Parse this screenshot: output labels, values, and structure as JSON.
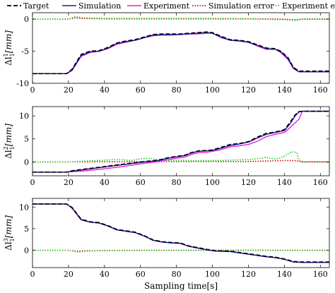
{
  "colors": {
    "target": "#000000",
    "simulation": "#1a1aa6",
    "experiment": "#e31ee3",
    "simulation_error": "#cc0000",
    "experiment_error": "#22cc22"
  },
  "chart_data": [
    {
      "type": "line",
      "ylabel": "Δl",
      "ylabel_sup": "1",
      "ylabel_sub": "1",
      "ylabel_unit": "[mm]",
      "xlim": [
        0,
        165
      ],
      "ylim": [
        -10,
        1
      ],
      "xticks": [
        0,
        20,
        40,
        60,
        80,
        100,
        120,
        140,
        160
      ],
      "xtick_labels": [
        "0",
        "20",
        "40",
        "60",
        "80",
        "100",
        "120",
        "140",
        "160"
      ],
      "yticks": [
        -10,
        -5,
        0
      ],
      "ytick_labels": [
        "-10",
        "-5",
        "0"
      ],
      "legend": [
        "Target",
        "Simulation",
        "Experiment",
        "Simulation error",
        "Experiment error"
      ],
      "series": [
        {
          "name": "Target",
          "style": "dashed",
          "x": [
            0,
            19,
            22,
            27,
            32,
            37,
            42,
            47,
            52,
            57,
            62,
            67,
            72,
            77,
            82,
            87,
            92,
            97,
            100,
            105,
            110,
            115,
            120,
            125,
            130,
            135,
            138,
            142,
            145,
            148,
            150,
            155,
            160,
            165
          ],
          "y": [
            -8.5,
            -8.5,
            -7.8,
            -5.5,
            -5.0,
            -4.9,
            -4.4,
            -3.7,
            -3.4,
            -3.2,
            -2.8,
            -2.4,
            -2.3,
            -2.3,
            -2.3,
            -2.2,
            -2.1,
            -2.0,
            -2.1,
            -2.7,
            -3.2,
            -3.3,
            -3.5,
            -4.0,
            -4.5,
            -4.6,
            -5.0,
            -6.0,
            -7.5,
            -8.1,
            -8.1,
            -8.1,
            -8.1,
            -8.1
          ]
        },
        {
          "name": "Simulation",
          "style": "solid",
          "x": [
            0,
            19,
            22,
            27,
            32,
            37,
            42,
            47,
            52,
            57,
            62,
            67,
            72,
            77,
            82,
            87,
            92,
            97,
            100,
            105,
            110,
            115,
            120,
            125,
            130,
            135,
            138,
            142,
            145,
            148,
            150,
            155,
            160,
            165
          ],
          "y": [
            -8.5,
            -8.5,
            -7.9,
            -5.7,
            -5.1,
            -5.0,
            -4.5,
            -3.8,
            -3.5,
            -3.3,
            -2.9,
            -2.5,
            -2.4,
            -2.4,
            -2.4,
            -2.3,
            -2.2,
            -2.1,
            -2.2,
            -2.8,
            -3.3,
            -3.4,
            -3.6,
            -4.1,
            -4.6,
            -4.7,
            -5.1,
            -6.1,
            -7.6,
            -8.2,
            -8.2,
            -8.2,
            -8.2,
            -8.2
          ]
        },
        {
          "name": "Experiment",
          "style": "solid",
          "x": [
            0,
            19,
            22,
            27,
            32,
            37,
            42,
            47,
            52,
            57,
            62,
            67,
            72,
            77,
            82,
            87,
            92,
            97,
            100,
            105,
            110,
            115,
            120,
            125,
            130,
            135,
            138,
            142,
            145,
            148,
            150,
            155,
            160,
            165
          ],
          "y": [
            -8.5,
            -8.5,
            -8.0,
            -5.8,
            -5.2,
            -5.0,
            -4.6,
            -3.9,
            -3.6,
            -3.3,
            -2.9,
            -2.6,
            -2.5,
            -2.5,
            -2.4,
            -2.3,
            -2.3,
            -2.2,
            -2.2,
            -2.9,
            -3.3,
            -3.4,
            -3.6,
            -4.2,
            -4.7,
            -4.7,
            -5.2,
            -6.3,
            -7.7,
            -8.2,
            -8.2,
            -8.2,
            -8.2,
            -8.2
          ]
        },
        {
          "name": "Simulation error",
          "style": "dotted",
          "x": [
            0,
            20,
            24,
            28,
            40,
            60,
            80,
            100,
            120,
            140,
            146,
            150,
            165
          ],
          "y": [
            0.0,
            0.0,
            0.2,
            0.1,
            0.05,
            0.05,
            0.05,
            0.05,
            0.05,
            0.0,
            -0.1,
            0.0,
            0.0
          ]
        },
        {
          "name": "Experiment error",
          "style": "dotted",
          "x": [
            0,
            20,
            24,
            28,
            40,
            60,
            80,
            100,
            120,
            140,
            146,
            150,
            165
          ],
          "y": [
            0.0,
            0.0,
            0.4,
            0.2,
            0.1,
            0.1,
            0.1,
            0.1,
            0.05,
            -0.1,
            -0.2,
            0.0,
            0.0
          ]
        }
      ]
    },
    {
      "type": "line",
      "ylabel": "Δl",
      "ylabel_sup": "2",
      "ylabel_sub": "1",
      "ylabel_unit": "[mm]",
      "xlim": [
        0,
        165
      ],
      "ylim": [
        -3,
        12
      ],
      "xticks": [
        0,
        20,
        40,
        60,
        80,
        100,
        120,
        140,
        160
      ],
      "xtick_labels": [
        "0",
        "20",
        "40",
        "60",
        "80",
        "100",
        "120",
        "140",
        "160"
      ],
      "yticks": [
        0,
        5,
        10
      ],
      "ytick_labels": [
        "0",
        "5",
        "10"
      ],
      "series": [
        {
          "name": "Target",
          "style": "dashed",
          "x": [
            0,
            19,
            22,
            30,
            40,
            50,
            60,
            70,
            75,
            80,
            85,
            88,
            92,
            97,
            100,
            105,
            110,
            115,
            120,
            125,
            130,
            135,
            140,
            143,
            146,
            148,
            150,
            155,
            165
          ],
          "y": [
            -2.2,
            -2.2,
            -1.9,
            -1.5,
            -1.0,
            -0.5,
            0.0,
            0.4,
            0.9,
            1.2,
            1.5,
            2.0,
            2.4,
            2.5,
            2.6,
            3.2,
            3.8,
            4.0,
            4.4,
            5.4,
            6.2,
            6.5,
            7.0,
            8.5,
            10.2,
            10.9,
            11.0,
            11.0,
            11.0
          ]
        },
        {
          "name": "Simulation",
          "style": "solid",
          "x": [
            0,
            19,
            22,
            30,
            40,
            50,
            60,
            70,
            75,
            80,
            85,
            88,
            92,
            97,
            100,
            105,
            110,
            115,
            120,
            125,
            130,
            135,
            140,
            143,
            146,
            148,
            150,
            155,
            165
          ],
          "y": [
            -2.2,
            -2.2,
            -2.0,
            -1.6,
            -1.1,
            -0.6,
            -0.1,
            0.3,
            0.8,
            1.1,
            1.4,
            1.9,
            2.3,
            2.4,
            2.5,
            3.0,
            3.6,
            3.9,
            4.3,
            5.2,
            6.0,
            6.4,
            6.8,
            8.2,
            10.0,
            10.8,
            11.0,
            11.0,
            11.0
          ]
        },
        {
          "name": "Experiment",
          "style": "solid",
          "x": [
            0,
            19,
            22,
            30,
            40,
            50,
            60,
            70,
            75,
            80,
            85,
            88,
            92,
            97,
            100,
            105,
            110,
            115,
            120,
            125,
            130,
            135,
            140,
            143,
            146,
            148,
            150,
            155,
            165
          ],
          "y": [
            -2.2,
            -2.2,
            -2.1,
            -1.9,
            -1.5,
            -1.0,
            -0.4,
            0.1,
            0.5,
            0.8,
            1.1,
            1.6,
            2.0,
            2.1,
            2.3,
            2.7,
            3.3,
            3.5,
            3.8,
            4.5,
            5.5,
            6.0,
            6.4,
            7.4,
            8.5,
            9.2,
            11.0,
            11.0,
            11.0
          ]
        },
        {
          "name": "Simulation error",
          "style": "dotted",
          "x": [
            0,
            20,
            40,
            60,
            80,
            100,
            120,
            130,
            140,
            145,
            148,
            150,
            165
          ],
          "y": [
            0.0,
            0.0,
            0.05,
            0.05,
            0.1,
            0.1,
            0.1,
            0.2,
            0.3,
            0.3,
            0.2,
            0.0,
            0.0
          ]
        },
        {
          "name": "Experiment error",
          "style": "dotted",
          "x": [
            0,
            20,
            30,
            40,
            45,
            50,
            55,
            60,
            65,
            70,
            75,
            80,
            90,
            100,
            110,
            120,
            125,
            130,
            135,
            140,
            143,
            145,
            147,
            148,
            150,
            155,
            165
          ],
          "y": [
            0.0,
            0.0,
            0.2,
            0.4,
            0.5,
            0.5,
            0.3,
            0.7,
            0.8,
            0.5,
            0.3,
            0.4,
            0.3,
            0.3,
            0.4,
            0.5,
            0.7,
            1.0,
            0.6,
            1.2,
            2.0,
            2.2,
            2.0,
            0.5,
            0.0,
            0.1,
            0.0
          ]
        }
      ]
    },
    {
      "type": "line",
      "ylabel": "Δl",
      "ylabel_sup": "3",
      "ylabel_sub": "1",
      "ylabel_unit": "[mm]",
      "xlim": [
        0,
        165
      ],
      "ylim": [
        -4,
        12
      ],
      "xticks": [
        0,
        20,
        40,
        60,
        80,
        100,
        120,
        140,
        160
      ],
      "xtick_labels": [
        "0",
        "20",
        "40",
        "60",
        "80",
        "100",
        "120",
        "140",
        "160"
      ],
      "yticks": [
        0,
        5,
        10
      ],
      "ytick_labels": [
        "0",
        "5",
        "10"
      ],
      "xlabel": "Sampling time[s]",
      "series": [
        {
          "name": "Target",
          "style": "dashed",
          "x": [
            0,
            19,
            22,
            27,
            32,
            37,
            42,
            47,
            52,
            57,
            62,
            67,
            72,
            77,
            82,
            87,
            92,
            97,
            102,
            110,
            120,
            130,
            135,
            140,
            145,
            150,
            155,
            165
          ],
          "y": [
            10.7,
            10.7,
            9.9,
            7.2,
            6.6,
            6.4,
            5.7,
            4.8,
            4.5,
            4.2,
            3.4,
            2.4,
            2.0,
            1.8,
            1.7,
            1.0,
            0.6,
            0.2,
            -0.1,
            -0.2,
            -0.8,
            -1.4,
            -1.6,
            -2.0,
            -2.6,
            -2.7,
            -2.7,
            -2.7
          ]
        },
        {
          "name": "Simulation",
          "style": "solid",
          "x": [
            0,
            19,
            22,
            27,
            32,
            37,
            42,
            47,
            52,
            57,
            62,
            67,
            72,
            77,
            82,
            87,
            92,
            97,
            102,
            110,
            120,
            130,
            135,
            140,
            145,
            150,
            155,
            165
          ],
          "y": [
            10.7,
            10.7,
            9.8,
            7.1,
            6.5,
            6.3,
            5.6,
            4.7,
            4.4,
            4.1,
            3.3,
            2.3,
            1.9,
            1.7,
            1.6,
            0.9,
            0.5,
            0.1,
            -0.2,
            -0.3,
            -0.9,
            -1.5,
            -1.7,
            -2.1,
            -2.7,
            -2.8,
            -2.8,
            -2.8
          ]
        },
        {
          "name": "Experiment",
          "style": "solid",
          "x": [
            0,
            19,
            22,
            27,
            32,
            37,
            42,
            47,
            52,
            57,
            62,
            67,
            72,
            77,
            82,
            87,
            92,
            97,
            102,
            110,
            120,
            130,
            135,
            140,
            145,
            150,
            155,
            165
          ],
          "y": [
            10.7,
            10.7,
            9.7,
            7.0,
            6.5,
            6.3,
            5.6,
            4.7,
            4.4,
            4.1,
            3.3,
            2.3,
            1.9,
            1.7,
            1.6,
            0.9,
            0.5,
            0.1,
            -0.2,
            -0.3,
            -0.9,
            -1.5,
            -1.7,
            -2.1,
            -2.7,
            -2.8,
            -2.8,
            -2.8
          ]
        },
        {
          "name": "Simulation error",
          "style": "dotted",
          "x": [
            0,
            20,
            25,
            30,
            60,
            80,
            100,
            120,
            140,
            150,
            165
          ],
          "y": [
            0.0,
            0.0,
            -0.2,
            -0.1,
            0.0,
            0.0,
            0.0,
            0.0,
            0.0,
            0.0,
            0.0
          ]
        },
        {
          "name": "Experiment error",
          "style": "dotted",
          "x": [
            0,
            20,
            25,
            30,
            40,
            60,
            80,
            100,
            120,
            140,
            150,
            165
          ],
          "y": [
            0.0,
            0.0,
            -0.4,
            -0.2,
            0.0,
            0.0,
            0.0,
            0.0,
            0.0,
            0.0,
            0.0,
            0.0
          ]
        }
      ]
    }
  ]
}
